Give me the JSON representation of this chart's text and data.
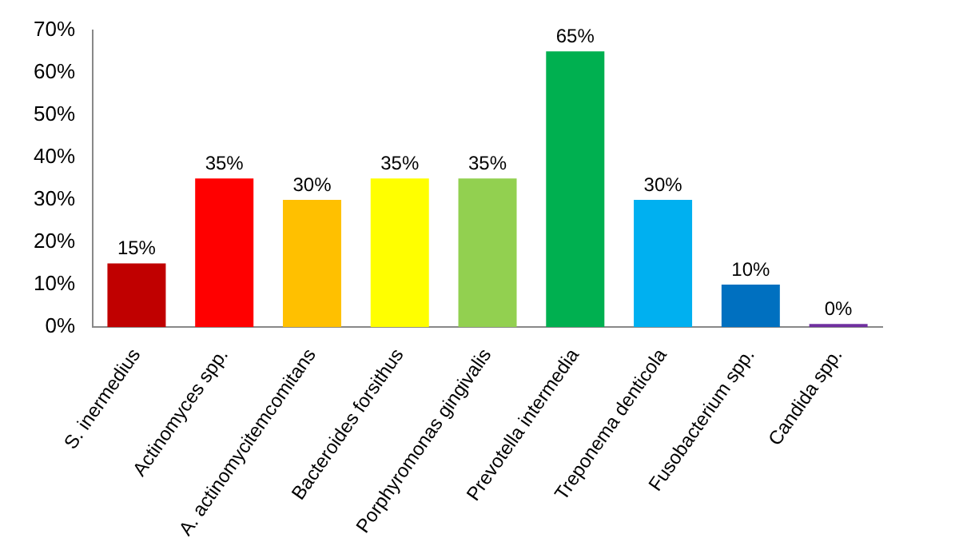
{
  "chart_data": {
    "type": "bar",
    "categories": [
      "S. inermedius",
      "Actinomyces spp.",
      "A. actinomycitemcomitans",
      "Bacteroides forsithus",
      "Porphyromonas gingivalis",
      "Prevotella intermedia",
      "Treponema denticola",
      "Fusobacterium spp.",
      "Candida spp."
    ],
    "values": [
      15,
      35,
      30,
      35,
      35,
      65,
      30,
      10,
      0
    ],
    "colors": [
      "#c00000",
      "#ff0000",
      "#ffc000",
      "#ffff00",
      "#92d050",
      "#00b050",
      "#00b0f0",
      "#0070c0",
      "#7030a0"
    ],
    "value_labels": [
      "15%",
      "35%",
      "30%",
      "35%",
      "35%",
      "65%",
      "30%",
      "10%",
      "0%"
    ],
    "ylim": [
      0,
      70
    ],
    "yticks": [
      {
        "value": 0,
        "label": "0%"
      },
      {
        "value": 10,
        "label": "10%"
      },
      {
        "value": 20,
        "label": "20%"
      },
      {
        "value": 30,
        "label": "30%"
      },
      {
        "value": 40,
        "label": "40%"
      },
      {
        "value": 50,
        "label": "50%"
      },
      {
        "value": 60,
        "label": "60%"
      },
      {
        "value": 70,
        "label": "70%"
      }
    ],
    "grid": false,
    "legend": false
  }
}
